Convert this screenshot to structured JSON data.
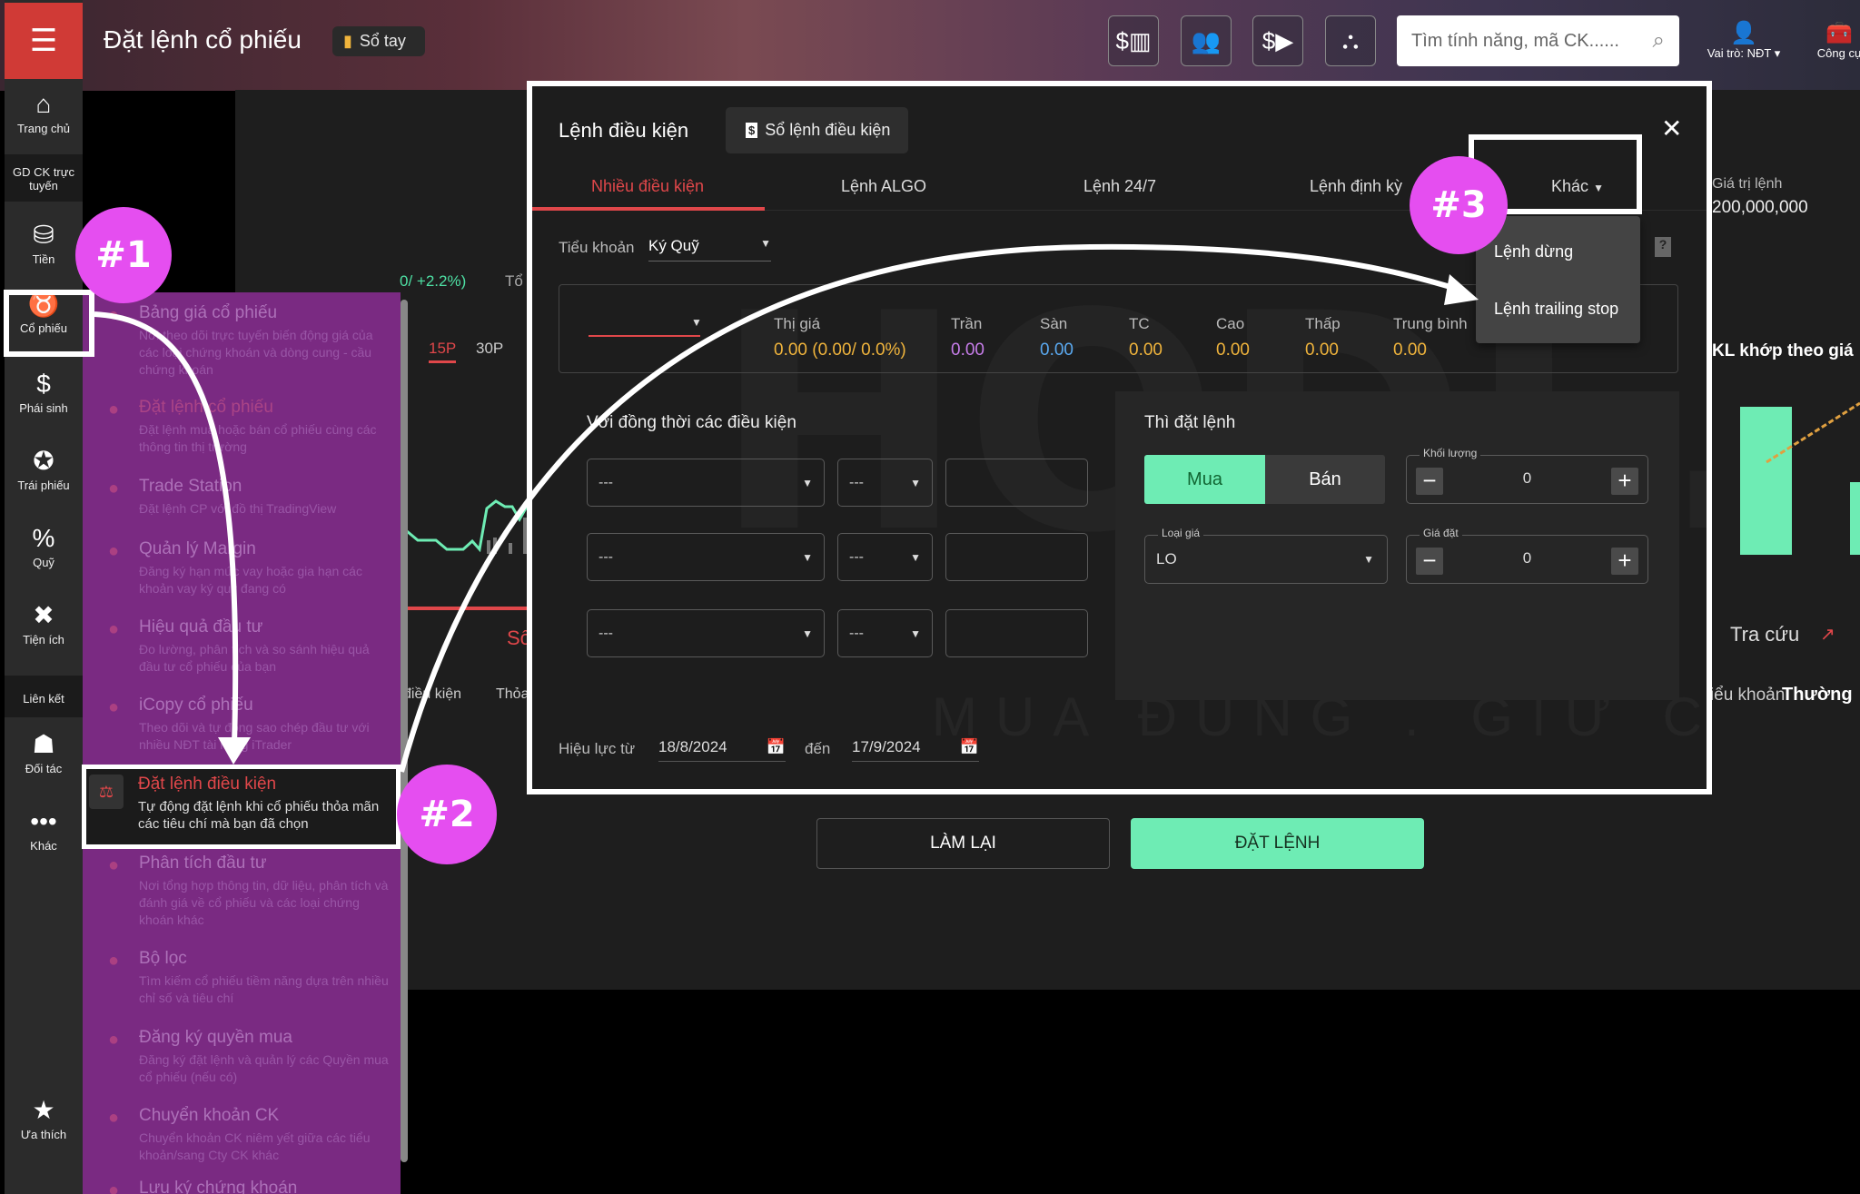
{
  "header": {
    "title": "Đặt lệnh cổ phiếu",
    "notebook_label": "Sổ tay",
    "search_placeholder": "Tìm tính năng, mã CK......",
    "role_label": "Vai trò: NĐT",
    "tools_label": "Công cụ",
    "toolbar_icons": [
      "money-chart-icon",
      "users-icon",
      "money-video-icon",
      "investor-network-icon"
    ]
  },
  "rail": [
    {
      "label": "Trang chủ",
      "icon": "home-icon"
    },
    {
      "label": "GD CK trực tuyến",
      "icon": ""
    },
    {
      "label": "Tiền",
      "icon": "coins-icon"
    },
    {
      "label": "Cổ phiếu",
      "icon": "bull-icon"
    },
    {
      "label": "Phái sinh",
      "icon": "derivative-icon"
    },
    {
      "label": "Trái phiếu",
      "icon": "bond-medal-icon"
    },
    {
      "label": "Quỹ",
      "icon": "fund-hand-icon"
    },
    {
      "label": "Tiện ích",
      "icon": "tools-icon"
    },
    {
      "label": "Liên kết",
      "icon": ""
    },
    {
      "label": "Đối tác",
      "icon": "partner-icon"
    },
    {
      "label": "Khác",
      "icon": "more-icon"
    },
    {
      "label": "Ưa thích",
      "icon": "star-icon"
    }
  ],
  "menu": [
    {
      "title": "Bảng giá cổ phiếu",
      "desc": "Nơi theo dõi trực tuyến biến động giá của các loại chứng khoán và dòng cung - cầu chứng khoán"
    },
    {
      "title": "Đặt lệnh cổ phiếu",
      "desc": "Đặt lệnh mua hoặc bán cổ phiếu cùng các thông tin thị trường"
    },
    {
      "title": "Trade Station",
      "desc": "Đặt lệnh CP với đồ thị TradingView"
    },
    {
      "title": "Quản lý Margin",
      "desc": "Đăng ký hạn mức vay hoặc gia hạn các khoản vay ký quỹ đang có"
    },
    {
      "title": "Hiệu quả đầu tư",
      "desc": "Đo lường, phân tích và so sánh hiệu quả đầu tư cổ phiếu của bạn"
    },
    {
      "title": "iCopy cổ phiếu",
      "desc": "Theo dõi và tự động sao chép đầu tư với nhiều NĐT tài năng iTrader"
    },
    {
      "title": "Đặt lệnh điều kiện",
      "desc": "Tự động đặt lệnh khi cổ phiếu thỏa mãn các tiêu chí mà bạn đã chọn"
    },
    {
      "title": "Phân tích đầu tư",
      "desc": "Nơi tổng hợp thông tin, dữ liệu, phân tích và đánh giá về cổ phiếu và các loại chứng khoán khác"
    },
    {
      "title": "Bộ lọc",
      "desc": "Tìm kiếm cổ phiếu tiềm năng dựa trên nhiều chỉ số và tiêu chí"
    },
    {
      "title": "Đăng ký quyền mua",
      "desc": "Đăng ký đặt lệnh và quản lý các Quyền mua cổ phiếu (nếu có)"
    },
    {
      "title": "Chuyển khoản CK",
      "desc": "Chuyển khoản CK niêm yết giữa các tiểu khoản/sang Cty CK khác"
    },
    {
      "title": "Lưu ký chứng khoán",
      "desc": ""
    }
  ],
  "background": {
    "change_text": "0/ +2.2%)",
    "to_text": "Tổ",
    "tf_15": "15P",
    "tf_30": "30P",
    "so_text": "Số",
    "cond_col": "điều kiện",
    "match_col": "Thỏa",
    "order_value_label": "Giá trị lệnh",
    "order_value": "200,000,000",
    "kl_title": "KL khớp theo giá",
    "lookup": "Tra cứu",
    "account_label": "Tiểu khoản",
    "account_value": "Thường"
  },
  "modal": {
    "title": "Lệnh điều kiện",
    "book_button": "Sổ lệnh điều kiện",
    "tabs": [
      "Nhiều điều kiện",
      "Lệnh ALGO",
      "Lệnh 24/7",
      "Lệnh định kỳ",
      "Khác"
    ],
    "active_tab": "Nhiều điều kiện",
    "other_menu": [
      "Lệnh dừng",
      "Lệnh trailing stop"
    ],
    "sub_account_label": "Tiểu khoản",
    "sub_account_value": "Ký Quỹ",
    "prices": [
      {
        "label": "Thị giá",
        "value": "0.00 (0.00/ 0.0%)",
        "color": "#f0b43c"
      },
      {
        "label": "Trần",
        "value": "0.00",
        "color": "#c77dea"
      },
      {
        "label": "Sàn",
        "value": "0.00",
        "color": "#5aa9f0"
      },
      {
        "label": "TC",
        "value": "0.00",
        "color": "#f0b43c"
      },
      {
        "label": "Cao",
        "value": "0.00",
        "color": "#f0b43c"
      },
      {
        "label": "Thấp",
        "value": "0.00",
        "color": "#f0b43c"
      },
      {
        "label": "Trung bình",
        "value": "0.00",
        "color": "#f0b43c"
      }
    ],
    "conditions_title": "Với đồng thời các điều kiện",
    "conditions": [
      {
        "field": "---",
        "op": "---",
        "value": ""
      },
      {
        "field": "---",
        "op": "---",
        "value": ""
      },
      {
        "field": "---",
        "op": "---",
        "value": ""
      }
    ],
    "then_title": "Thì đặt lệnh",
    "buy": "Mua",
    "sell": "Bán",
    "side_selected": "Mua",
    "qty_label": "Khối lượng",
    "qty": "0",
    "price_type_label": "Loại giá",
    "price_type": "LO",
    "price_label": "Giá đặt",
    "price": "0",
    "valid_from_label": "Hiệu lực từ",
    "valid_from": "18/8/2024",
    "to_label": "đến",
    "valid_to": "17/9/2024"
  },
  "actions": {
    "reset": "LÀM LẠI",
    "submit": "ĐẶT LỆNH"
  },
  "annotations": {
    "step1": "#1",
    "step2": "#2",
    "step3": "#3"
  },
  "watermark": {
    "brand": "HODL.VN",
    "slogan": "MUA ĐÚNG . GIỮ CHẶT"
  },
  "colors": {
    "accent_red": "#e0474a",
    "buy_green": "#6eecb4",
    "annotation_pink": "#e54ef0",
    "menu_purple": "#7a2a82"
  }
}
